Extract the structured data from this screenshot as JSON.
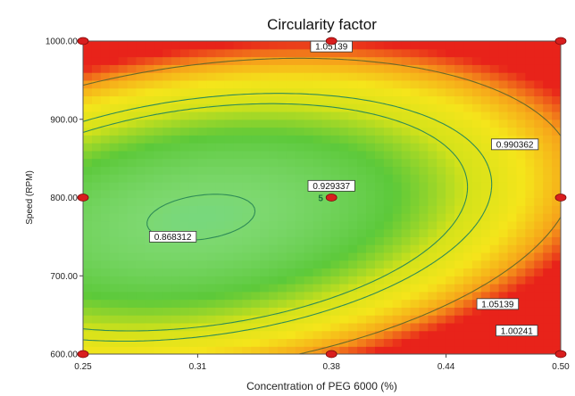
{
  "chart_data": {
    "type": "heatmap",
    "subtype": "contour",
    "title": "Circularity factor",
    "xlabel": "Concentration of PEG 6000 (%)",
    "ylabel": "Speed (RPM)",
    "xlim": [
      0.25,
      0.5
    ],
    "ylim": [
      600,
      1000
    ],
    "x_ticks": [
      "0.25",
      "0.31",
      "0.38",
      "0.44",
      "0.50"
    ],
    "y_ticks": [
      "600.00",
      "700.00",
      "800.00",
      "900.00",
      "1000.00"
    ],
    "z_range": [
      0.84,
      1.08
    ],
    "color_scale": [
      "#2b3fa8",
      "#3fa9f5",
      "#4fd6ea",
      "#7dd86f",
      "#5cc93a",
      "#d4e21a",
      "#f5e51b",
      "#f6a21a",
      "#e8231a"
    ],
    "contours": [
      {
        "label": "0.868312",
        "value": 0.868312,
        "label_at": [
          0.297,
          750
        ]
      },
      {
        "label": "0.929337",
        "value": 0.929337,
        "label_at": [
          0.38,
          815
        ]
      },
      {
        "label": "0.990362",
        "value": 0.990362,
        "label_at": [
          0.476,
          868
        ]
      },
      {
        "label": "1.05139",
        "value": 1.05139,
        "label_at": [
          0.38,
          993
        ]
      },
      {
        "label": "1.05139",
        "value": 1.05139,
        "label_at": [
          0.467,
          664
        ]
      },
      {
        "label": "1.00241",
        "value": 1.00241,
        "label_at": [
          0.477,
          630
        ]
      }
    ],
    "design_points": [
      {
        "x": 0.25,
        "y": 600
      },
      {
        "x": 0.38,
        "y": 600
      },
      {
        "x": 0.5,
        "y": 600
      },
      {
        "x": 0.25,
        "y": 800
      },
      {
        "x": 0.38,
        "y": 800
      },
      {
        "x": 0.5,
        "y": 800
      },
      {
        "x": 0.25,
        "y": 1000
      },
      {
        "x": 0.38,
        "y": 1000
      },
      {
        "x": 0.5,
        "y": 1000
      }
    ],
    "point_annotation": {
      "label": "5",
      "x": 0.38,
      "y": 800
    },
    "point_color": "#d81e1e"
  }
}
